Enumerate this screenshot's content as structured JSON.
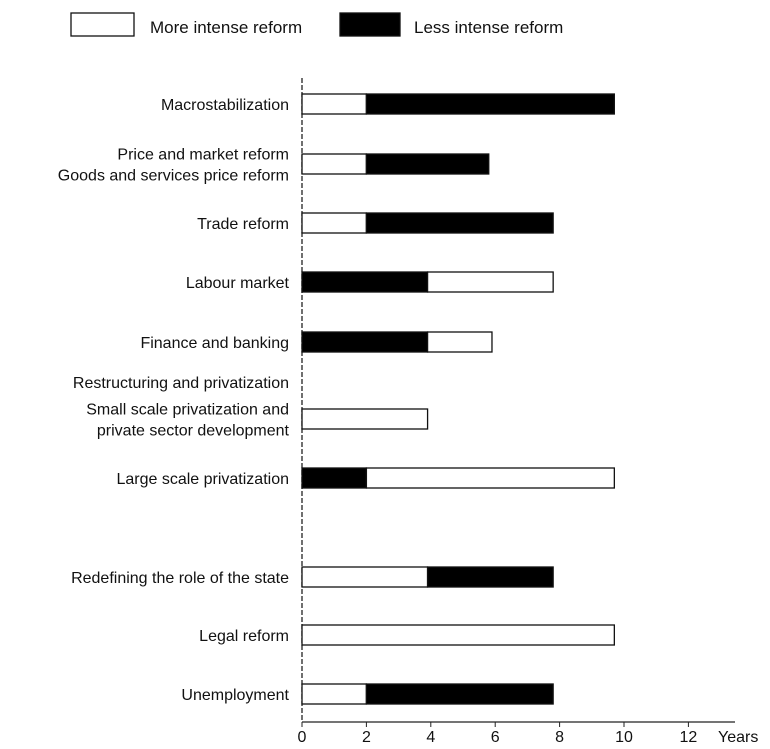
{
  "chart_data": {
    "type": "bar",
    "orientation": "horizontal",
    "stacked": true,
    "title": "",
    "xlabel": "Years",
    "ylabel": "",
    "xlim": [
      0,
      13
    ],
    "x_ticks": [
      "0",
      "2",
      "4",
      "6",
      "8",
      "10",
      "12"
    ],
    "legend": {
      "placement": "top",
      "items": [
        {
          "label": "More intense reform",
          "color": "#ffffff"
        },
        {
          "label": "Less intense reform",
          "color": "#000000"
        }
      ]
    },
    "rows": [
      {
        "label_lines": [
          "Macrostabilization"
        ],
        "segments": [
          {
            "kind": "more",
            "start": 0,
            "end": 2
          },
          {
            "kind": "less",
            "start": 2,
            "end": 9.7
          }
        ]
      },
      {
        "label_lines": [
          "Price and market reform",
          "Goods and services price reform"
        ],
        "segments": [
          {
            "kind": "more",
            "start": 0,
            "end": 2
          },
          {
            "kind": "less",
            "start": 2,
            "end": 5.8
          }
        ]
      },
      {
        "label_lines": [
          "Trade reform"
        ],
        "segments": [
          {
            "kind": "more",
            "start": 0,
            "end": 2
          },
          {
            "kind": "less",
            "start": 2,
            "end": 7.8
          }
        ]
      },
      {
        "label_lines": [
          "Labour market"
        ],
        "segments": [
          {
            "kind": "less",
            "start": 0,
            "end": 3.9
          },
          {
            "kind": "more",
            "start": 3.9,
            "end": 7.8
          }
        ]
      },
      {
        "label_lines": [
          "Finance and banking"
        ],
        "segments": [
          {
            "kind": "less",
            "start": 0,
            "end": 3.9
          },
          {
            "kind": "more",
            "start": 3.9,
            "end": 5.9
          }
        ]
      },
      {
        "label_lines": [
          "Restructuring and privatization"
        ],
        "segments": []
      },
      {
        "label_lines": [
          "Small scale privatization and",
          "private sector development"
        ],
        "segments": [
          {
            "kind": "more",
            "start": 0,
            "end": 3.9
          }
        ]
      },
      {
        "label_lines": [
          "Large scale privatization"
        ],
        "segments": [
          {
            "kind": "less",
            "start": 0,
            "end": 2
          },
          {
            "kind": "more",
            "start": 2,
            "end": 9.7
          }
        ]
      },
      {
        "label_lines": [
          "Redefining the role of the state"
        ],
        "segments": [
          {
            "kind": "more",
            "start": 0,
            "end": 3.9
          },
          {
            "kind": "less",
            "start": 3.9,
            "end": 7.8
          }
        ]
      },
      {
        "label_lines": [
          "Legal reform"
        ],
        "segments": [
          {
            "kind": "more",
            "start": 0,
            "end": 9.7
          }
        ]
      },
      {
        "label_lines": [
          "Unemployment"
        ],
        "segments": [
          {
            "kind": "more",
            "start": 0,
            "end": 2
          },
          {
            "kind": "less",
            "start": 2,
            "end": 7.8
          }
        ]
      }
    ]
  }
}
